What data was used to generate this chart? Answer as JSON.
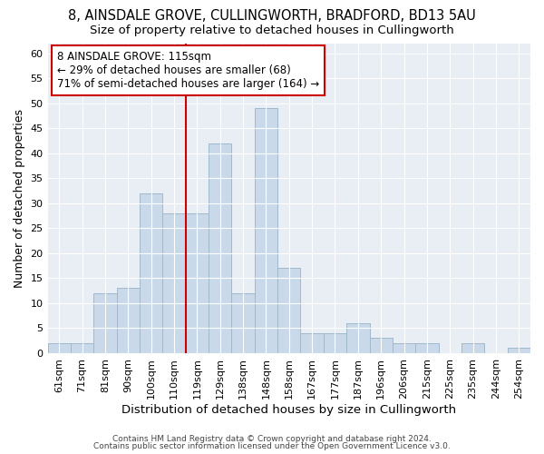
{
  "title1": "8, AINSDALE GROVE, CULLINGWORTH, BRADFORD, BD13 5AU",
  "title2": "Size of property relative to detached houses in Cullingworth",
  "xlabel": "Distribution of detached houses by size in Cullingworth",
  "ylabel": "Number of detached properties",
  "categories": [
    "61sqm",
    "71sqm",
    "81sqm",
    "90sqm",
    "100sqm",
    "110sqm",
    "119sqm",
    "129sqm",
    "138sqm",
    "148sqm",
    "158sqm",
    "167sqm",
    "177sqm",
    "187sqm",
    "196sqm",
    "206sqm",
    "215sqm",
    "225sqm",
    "235sqm",
    "244sqm",
    "254sqm"
  ],
  "values": [
    2,
    2,
    12,
    13,
    32,
    28,
    28,
    42,
    12,
    49,
    17,
    4,
    4,
    6,
    3,
    2,
    2,
    0,
    2,
    0,
    1
  ],
  "bar_color": "#c9d9ea",
  "bar_edge_color": "#a0b8cc",
  "vline_index": 6,
  "annotation_line1": "8 AINSDALE GROVE: 115sqm",
  "annotation_line2": "← 29% of detached houses are smaller (68)",
  "annotation_line3": "71% of semi-detached houses are larger (164) →",
  "annotation_box_color": "white",
  "annotation_box_edge": "#cc0000",
  "vline_color": "#cc0000",
  "ylim": [
    0,
    62
  ],
  "yticks": [
    0,
    5,
    10,
    15,
    20,
    25,
    30,
    35,
    40,
    45,
    50,
    55,
    60
  ],
  "footer1": "Contains HM Land Registry data © Crown copyright and database right 2024.",
  "footer2": "Contains public sector information licensed under the Open Government Licence v3.0.",
  "bg_color": "#e8eef4",
  "title1_fontsize": 10.5,
  "title2_fontsize": 9.5,
  "tick_fontsize": 8,
  "ylabel_fontsize": 9,
  "xlabel_fontsize": 9.5,
  "footer_fontsize": 6.5,
  "annotation_fontsize": 8.5
}
